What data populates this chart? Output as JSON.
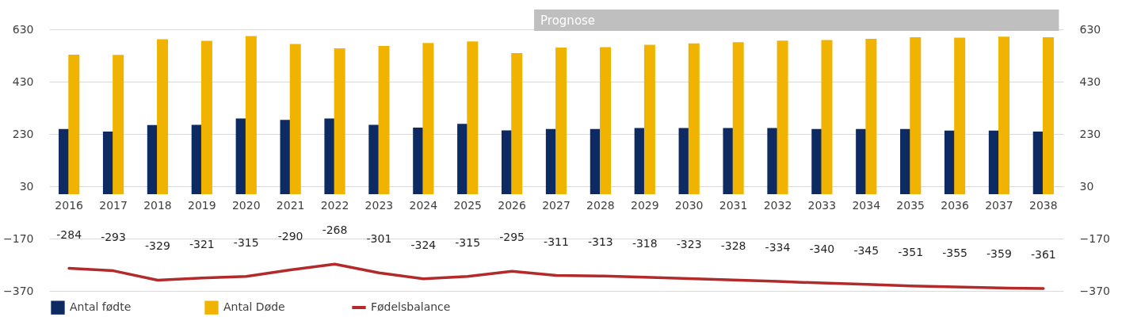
{
  "chart_data": {
    "type": "bar",
    "categories": [
      "2016",
      "2017",
      "2018",
      "2019",
      "2020",
      "2021",
      "2022",
      "2023",
      "2024",
      "2025",
      "2026",
      "2027",
      "2028",
      "2029",
      "2030",
      "2031",
      "2032",
      "2033",
      "2034",
      "2035",
      "2036",
      "2037",
      "2038"
    ],
    "series": [
      {
        "name": "Antal fødte",
        "color": "#0e2a63",
        "values": [
          249,
          239,
          264,
          265,
          289,
          284,
          289,
          265,
          254,
          269,
          244,
          249,
          249,
          253,
          253,
          253,
          253,
          249,
          249,
          249,
          243,
          243,
          239
        ]
      },
      {
        "name": "Antal Døde",
        "color": "#f0b400",
        "values": [
          533,
          532,
          592,
          586,
          604,
          574,
          557,
          566,
          578,
          584,
          539,
          560,
          562,
          571,
          576,
          581,
          587,
          589,
          594,
          600,
          598,
          602,
          600
        ]
      },
      {
        "name": "Fødelsbalance",
        "type": "line",
        "axis": "y2",
        "color": "#b22a2a",
        "data_labels": true,
        "values": [
          -284,
          -293,
          -329,
          -321,
          -315,
          -290,
          -268,
          -301,
          -324,
          -315,
          -295,
          -311,
          -313,
          -318,
          -323,
          -328,
          -334,
          -340,
          -345,
          -351,
          -355,
          -359,
          -361
        ]
      }
    ],
    "ylim": [
      -370,
      630
    ],
    "yticks": [
      -370,
      -170,
      30,
      230,
      430,
      630
    ],
    "y2lim": [
      -370,
      630
    ],
    "y2ticks": [
      -370,
      -170,
      30,
      230,
      430,
      630
    ],
    "grid": "y",
    "legend": "bottom left",
    "annotations": [
      "Prognose"
    ]
  }
}
